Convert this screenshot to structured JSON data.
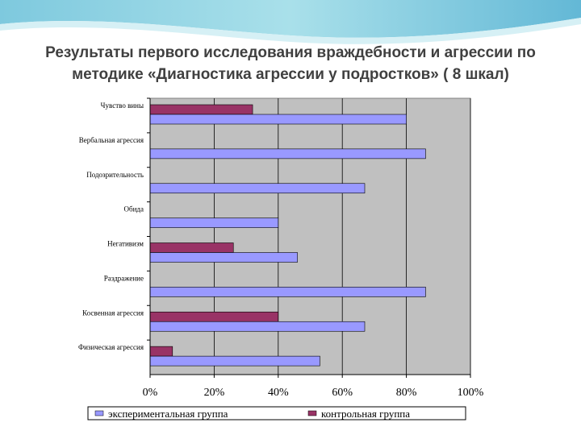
{
  "slide": {
    "title_line1": "Результаты первого исследования враждебности и агрессии  по",
    "title_line2": "методике «Диагностика агрессии у подростков» ( 8 шкал)"
  },
  "colors": {
    "plot_background": "#c0c0c0",
    "experimental": "#9999ff",
    "control": "#993366",
    "title": "#404040"
  },
  "chart_data": {
    "type": "bar",
    "orientation": "horizontal",
    "categories": [
      "Чувство вины",
      "Вербальная агрессия",
      "Подозрительность",
      "Обида",
      "Негативизм",
      "Раздражение",
      "Косвенная агрессия",
      "Физическая агрессия"
    ],
    "series": [
      {
        "name": "экспериментальная группа",
        "values": [
          80,
          86,
          67,
          40,
          46,
          86,
          67,
          53
        ]
      },
      {
        "name": "контрольная группа",
        "values": [
          32,
          0,
          0,
          0,
          26,
          0,
          40,
          7
        ]
      }
    ],
    "xlim": [
      0,
      100
    ],
    "x_ticks": [
      "0%",
      "20%",
      "40%",
      "60%",
      "80%",
      "100%"
    ],
    "grid": true,
    "legend_position": "bottom"
  }
}
